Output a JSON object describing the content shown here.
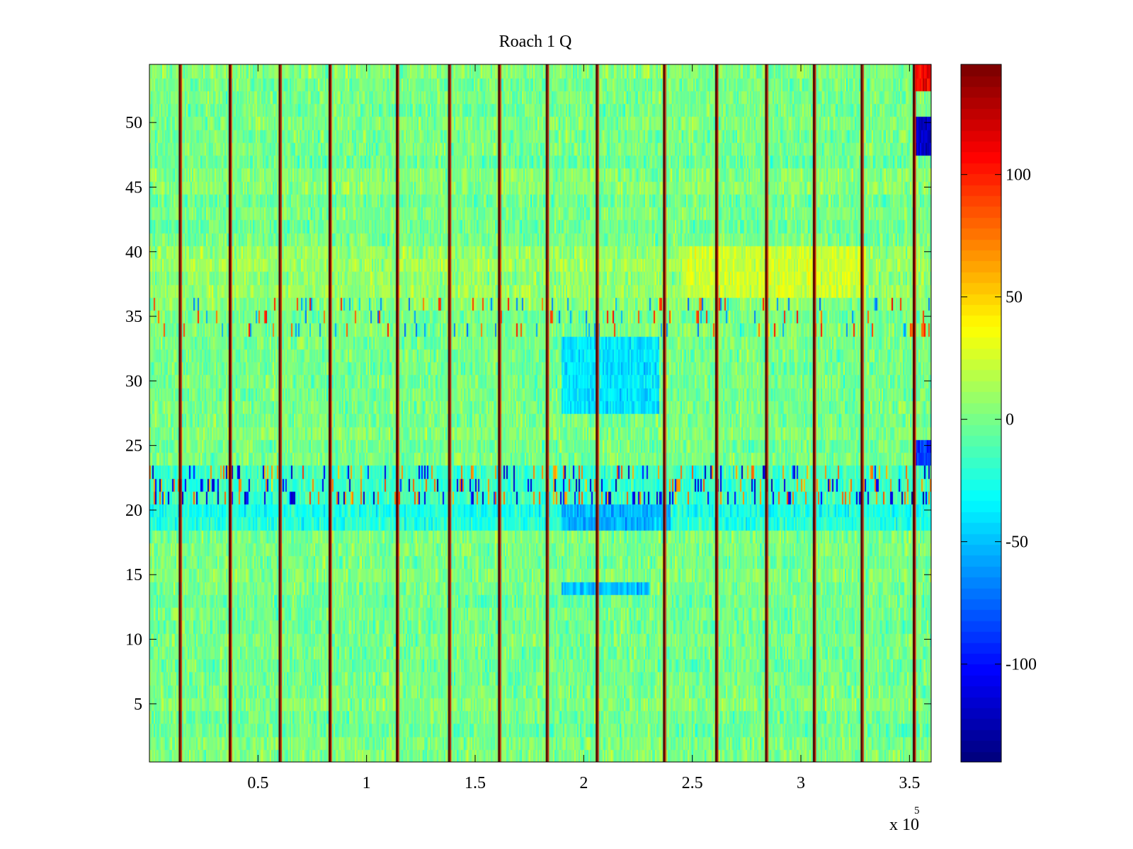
{
  "chart_data": {
    "type": "heatmap",
    "title": "Roach 1 Q",
    "xlabel": "",
    "ylabel": "",
    "x_range": [
      0,
      360000
    ],
    "y_range": [
      0.5,
      54.5
    ],
    "x_ticks": [
      {
        "value": 50000,
        "label": "0.5"
      },
      {
        "value": 100000,
        "label": "1"
      },
      {
        "value": 150000,
        "label": "1.5"
      },
      {
        "value": 200000,
        "label": "2"
      },
      {
        "value": 250000,
        "label": "2.5"
      },
      {
        "value": 300000,
        "label": "3"
      },
      {
        "value": 350000,
        "label": "3.5"
      }
    ],
    "x_exponent": {
      "base": "x 10",
      "power": "5"
    },
    "y_ticks": [
      {
        "value": 5,
        "label": "5"
      },
      {
        "value": 10,
        "label": "10"
      },
      {
        "value": 15,
        "label": "15"
      },
      {
        "value": 20,
        "label": "20"
      },
      {
        "value": 25,
        "label": "25"
      },
      {
        "value": 30,
        "label": "30"
      },
      {
        "value": 35,
        "label": "35"
      },
      {
        "value": 40,
        "label": "40"
      },
      {
        "value": 45,
        "label": "45"
      },
      {
        "value": 50,
        "label": "50"
      }
    ],
    "colorbar": {
      "colormap": "jet",
      "range": [
        -140,
        145
      ],
      "ticks": [
        {
          "value": 100,
          "label": "100"
        },
        {
          "value": 50,
          "label": "50"
        },
        {
          "value": 0,
          "label": "0"
        },
        {
          "value": -50,
          "label": "-50"
        },
        {
          "value": -100,
          "label": "-100"
        }
      ]
    },
    "rows": 54,
    "baseline_value": 0,
    "vertical_stripes_x": [
      14000,
      37000,
      60000,
      83000,
      114000,
      138000,
      161000,
      183000,
      206000,
      237000,
      261000,
      284000,
      306000,
      328000,
      352000
    ],
    "row_offsets": [
      {
        "rows": [
          21,
          22,
          23
        ],
        "value": -15
      },
      {
        "rows": [
          34,
          35,
          36
        ],
        "value": 5
      },
      {
        "rows": [
          19,
          20
        ],
        "value": -25
      },
      {
        "rows": [
          37,
          38,
          39,
          40
        ],
        "value": 10
      }
    ],
    "regions": [
      {
        "x": [
          190000,
          235000
        ],
        "rows": [
          28,
          33
        ],
        "value": -40
      },
      {
        "x": [
          190000,
          240000
        ],
        "rows": [
          19,
          20
        ],
        "value": -55
      },
      {
        "x": [
          190000,
          230000
        ],
        "rows": [
          14,
          14
        ],
        "value": -50
      },
      {
        "x": [
          245000,
          330000
        ],
        "rows": [
          37,
          40
        ],
        "value": 25
      },
      {
        "x": 357000,
        "rows": [
          48,
          50
        ],
        "value": -120
      },
      {
        "x": 357000,
        "rows": [
          53,
          54
        ],
        "value": 110
      },
      {
        "x": 357000,
        "rows": [
          24,
          25
        ],
        "value": -90
      }
    ]
  }
}
